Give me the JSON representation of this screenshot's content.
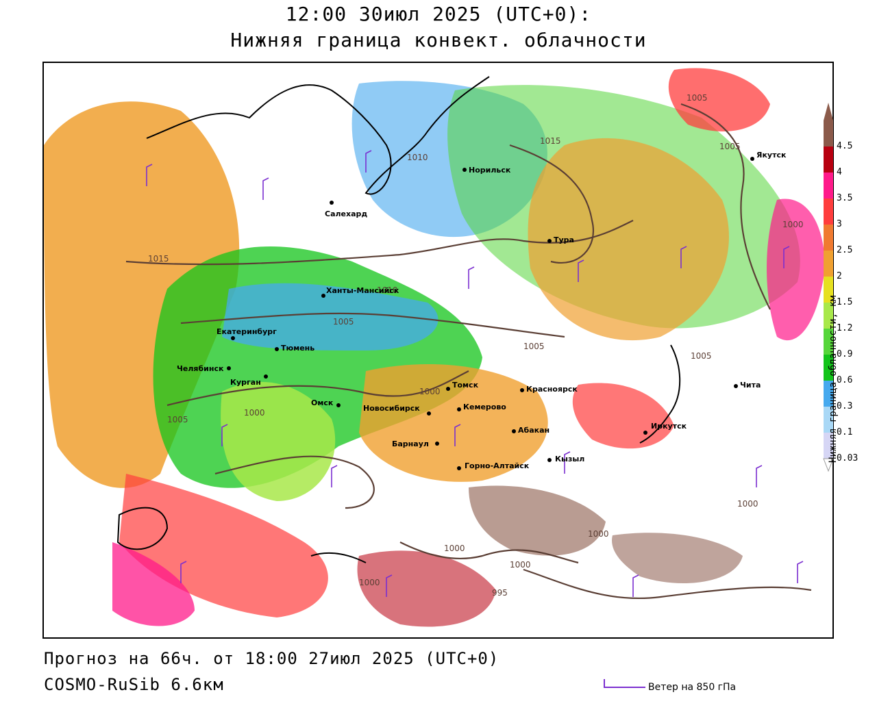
{
  "header": {
    "title_line1": "12:00 30июл 2025 (UTC+0):",
    "title_line2": "Нижняя граница конвект. облачности"
  },
  "footer": {
    "forecast": "Прогноз на 66ч. от 18:00 27июл 2025 (UTC+0)",
    "model": "COSMO-RuSib 6.6км"
  },
  "legend": {
    "title": "Нижняя граница облачности, км",
    "levels": [
      "0.03",
      "0.1",
      "0.3",
      "0.6",
      "0.9",
      "1.2",
      "1.5",
      "2",
      "2.5",
      "3",
      "3.5",
      "4",
      "4.5"
    ],
    "colors": [
      "#d6d6f5",
      "#a9d8f6",
      "#46a9ee",
      "#13c41a",
      "#56d63a",
      "#a8e84a",
      "#e6e020",
      "#f0a030",
      "#f07a30",
      "#ff3d3d",
      "#ff1a8a",
      "#b80010",
      "#8b5a4a"
    ],
    "wind_label": "Ветер на 850 гПа"
  },
  "map": {
    "cities": [
      {
        "name": "Якутск"
      },
      {
        "name": "Норильск"
      },
      {
        "name": "Салехард"
      },
      {
        "name": "Ханты-Мансийск"
      },
      {
        "name": "Екатеринбург"
      },
      {
        "name": "Тюмень"
      },
      {
        "name": "Челябинск"
      },
      {
        "name": "Курган"
      },
      {
        "name": "Омск"
      },
      {
        "name": "Новосибирск"
      },
      {
        "name": "Томск"
      },
      {
        "name": "Кемерово"
      },
      {
        "name": "Красноярск"
      },
      {
        "name": "Абакан"
      },
      {
        "name": "Барнаул"
      },
      {
        "name": "Горно-Алтайск"
      },
      {
        "name": "Кызыл"
      },
      {
        "name": "Иркутск"
      },
      {
        "name": "Чита"
      },
      {
        "name": "Тура"
      }
    ],
    "isobars": [
      "1005",
      "1015",
      "1010",
      "1015",
      "1010",
      "1005",
      "1005",
      "1000",
      "1005",
      "1000",
      "1000",
      "1000",
      "1000",
      "1000",
      "1000",
      "995",
      "1005",
      "1005",
      "1000"
    ]
  }
}
